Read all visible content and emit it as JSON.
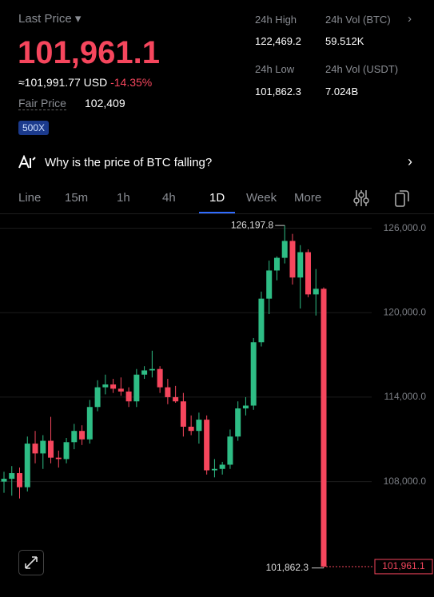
{
  "header": {
    "label": "Last Price",
    "price": "101,961.1",
    "usd": "≈101,991.77 USD",
    "change": "-14.35%",
    "fair_label": "Fair Price",
    "fair_value": "102,409",
    "leverage": "500X"
  },
  "stats": [
    {
      "label": "24h High",
      "value": "122,469.2"
    },
    {
      "label": "24h Vol (BTC)",
      "value": "59.512K"
    },
    {
      "label": "24h Low",
      "value": "101,862.3"
    },
    {
      "label": "24h Vol (USDT)",
      "value": "7.024B"
    }
  ],
  "banner": "Why is the price of BTC falling?",
  "tabs": [
    "Line",
    "15m",
    "1h",
    "4h",
    "1D",
    "Week",
    "More"
  ],
  "chart_data": {
    "type": "candlestick",
    "up_color": "#2ebd85",
    "down_color": "#f6465d",
    "grid": true,
    "ylim": [
      99800,
      127000
    ],
    "yticks": [
      {
        "value": 126000,
        "label": "126,000.0"
      },
      {
        "value": 120000,
        "label": "120,000.0"
      },
      {
        "value": 114000,
        "label": "114,000.0"
      },
      {
        "value": 108000,
        "label": "108,000.0"
      }
    ],
    "open": [
      108000,
      108200,
      108600,
      107600,
      110700,
      110000,
      110900,
      109700,
      109600,
      110800,
      111600,
      111000,
      113300,
      114700,
      114900,
      114600,
      114400,
      113700,
      115600,
      115900,
      116000,
      114700,
      114000,
      113700,
      111900,
      111600,
      112400,
      108800,
      108900,
      109200,
      111200,
      113200,
      113400,
      117900,
      121000,
      123000,
      123900,
      125100,
      122500,
      124300,
      121300,
      121700
    ],
    "high": [
      108700,
      109100,
      109000,
      111200,
      111600,
      111300,
      112600,
      110200,
      111100,
      112100,
      112000,
      113800,
      115200,
      115600,
      115300,
      115400,
      114700,
      116000,
      116200,
      117300,
      116200,
      115300,
      114800,
      114300,
      112700,
      112900,
      112700,
      109600,
      109400,
      111700,
      113700,
      114000,
      118200,
      121500,
      123700,
      124000,
      126197.8,
      125600,
      124800,
      124500,
      123100,
      121800
    ],
    "low": [
      107200,
      107000,
      106800,
      107300,
      109300,
      108900,
      109300,
      109000,
      109300,
      110300,
      110600,
      110700,
      113000,
      114200,
      114300,
      114100,
      113300,
      113300,
      115300,
      115400,
      114300,
      113500,
      113600,
      111200,
      111300,
      110700,
      108500,
      108300,
      108500,
      108900,
      110900,
      112700,
      113100,
      117600,
      119900,
      122300,
      123500,
      122000,
      120300,
      121100,
      119800,
      101862.3
    ],
    "close": [
      108200,
      108600,
      107600,
      110700,
      110000,
      110900,
      109700,
      109600,
      110800,
      111600,
      111000,
      113300,
      114700,
      114900,
      114600,
      114400,
      113700,
      115600,
      115900,
      116000,
      114700,
      114000,
      113700,
      111900,
      111600,
      112400,
      108800,
      108900,
      109200,
      111200,
      113200,
      113400,
      117900,
      121000,
      123000,
      123900,
      125100,
      122500,
      124300,
      121300,
      121700,
      101961.1
    ],
    "high_label": {
      "value": 126197.8,
      "label": "126,197.8"
    },
    "low_label": {
      "value": 101862.3,
      "label": "101,862.3"
    },
    "last_label": {
      "value": 101961.1,
      "label": "101,961.1"
    }
  }
}
